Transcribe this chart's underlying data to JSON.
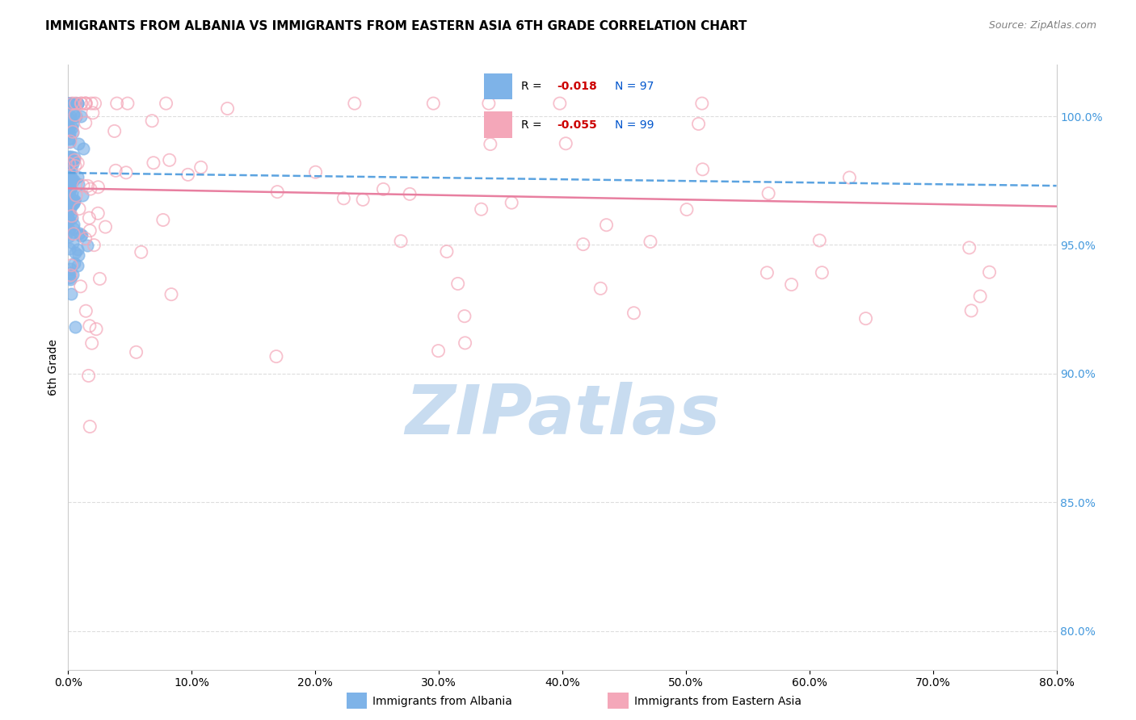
{
  "title": "IMMIGRANTS FROM ALBANIA VS IMMIGRANTS FROM EASTERN ASIA 6TH GRADE CORRELATION CHART",
  "source": "Source: ZipAtlas.com",
  "ylabel": "6th Grade",
  "y_right_ticks": [
    80.0,
    85.0,
    90.0,
    95.0,
    100.0
  ],
  "x_range": [
    0.0,
    80.0
  ],
  "y_range": [
    78.5,
    102.0
  ],
  "albania_R": -0.018,
  "albania_N": 97,
  "eastern_asia_R": -0.055,
  "eastern_asia_N": 99,
  "albania_color": "#7EB3E8",
  "eastern_asia_color": "#F4A7B9",
  "albania_trend_color": "#5BA3E0",
  "eastern_asia_trend_color": "#E87FA0",
  "grid_color": "#DDDDDD",
  "title_fontsize": 11,
  "source_fontsize": 9,
  "legend_label_albania": "Immigrants from Albania",
  "legend_label_eastern_asia": "Immigrants from Eastern Asia",
  "watermark_text": "ZIPatlas",
  "watermark_color": "#C8DCF0",
  "background_color": "white"
}
